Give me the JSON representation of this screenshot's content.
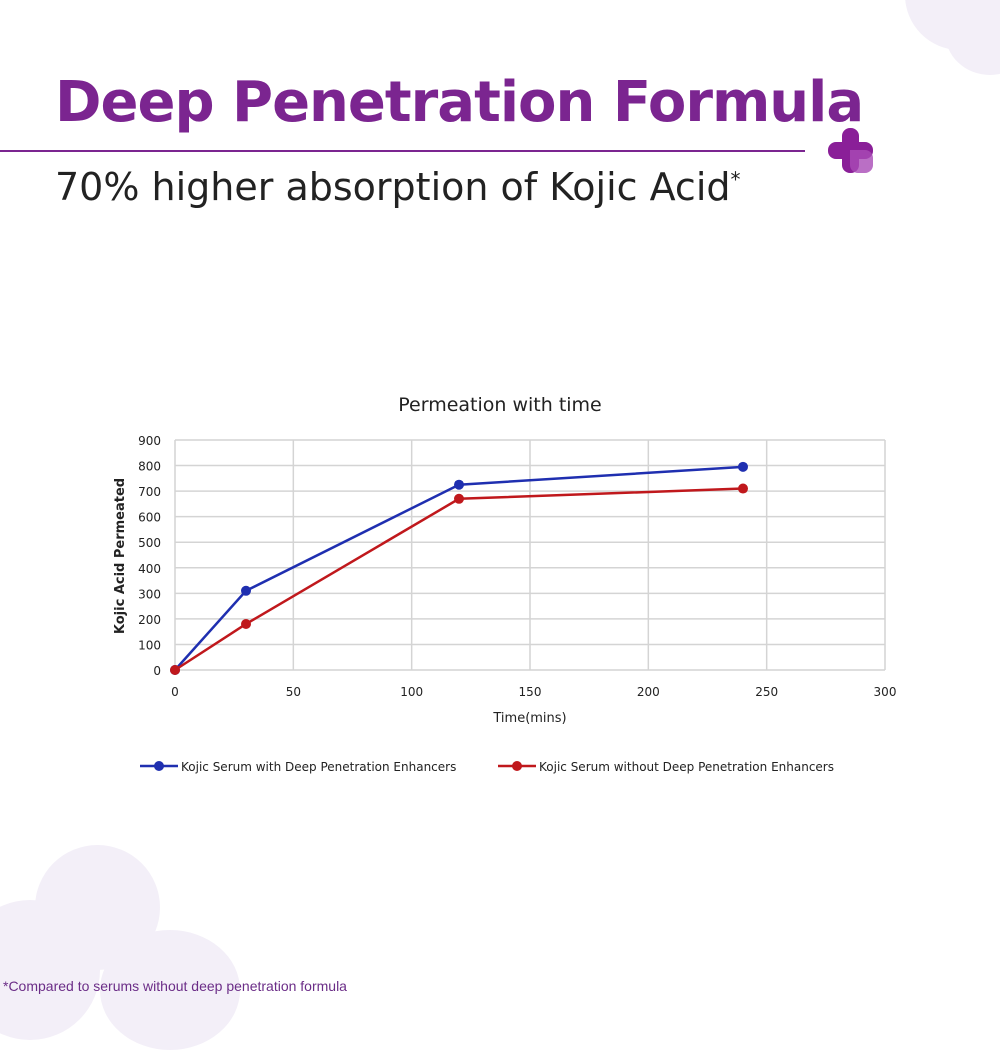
{
  "header": {
    "title": "Deep Penetration Formula",
    "subtitle": "70% higher absorption of Kojic Acid",
    "subtitle_mark": "*"
  },
  "footnote": "*Compared to serums without deep penetration formula",
  "colors": {
    "brand": "#7b2590",
    "blue": "#1f2fb0",
    "red": "#c0181c"
  },
  "chart_data": {
    "type": "line",
    "title": "Permeation with time",
    "xlabel": "Time(mins)",
    "ylabel": "Kojic Acid Permeated",
    "xlim": [
      0,
      300
    ],
    "ylim": [
      0,
      900
    ],
    "xticks": [
      0,
      50,
      100,
      150,
      200,
      250,
      300
    ],
    "yticks": [
      0,
      100,
      200,
      300,
      400,
      500,
      600,
      700,
      800,
      900
    ],
    "grid": true,
    "legend_position": "bottom",
    "x": [
      0,
      30,
      120,
      240
    ],
    "series": [
      {
        "name": "Kojic Serum with Deep Penetration Enhancers",
        "color": "#1f2fb0",
        "values": [
          0,
          310,
          725,
          795
        ]
      },
      {
        "name": "Kojic Serum without Deep Penetration Enhancers",
        "color": "#c0181c",
        "values": [
          0,
          180,
          670,
          710
        ]
      }
    ]
  }
}
